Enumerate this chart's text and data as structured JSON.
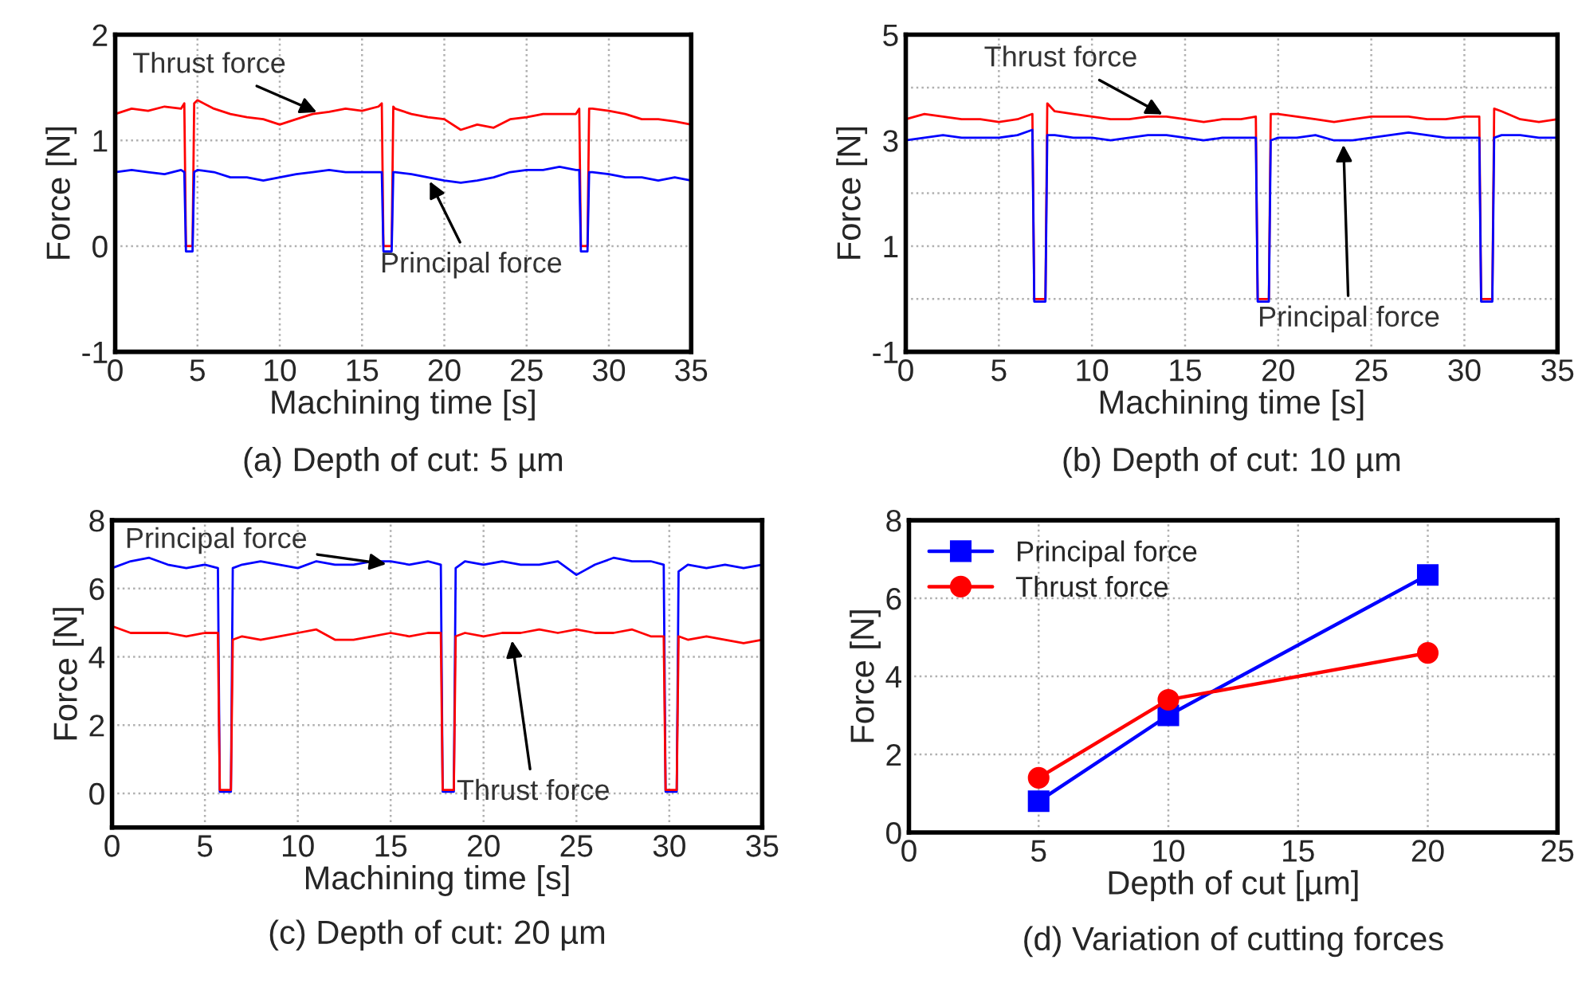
{
  "chart_data": [
    {
      "type": "line",
      "title": "(a) Depth of cut: 5 µm",
      "xlabel": "Machining time [s]",
      "ylabel": "Force [N]",
      "x": [
        0,
        1,
        2,
        3,
        4,
        4.2,
        4.3,
        4.7,
        4.8,
        5,
        6,
        7,
        8,
        9,
        10,
        11,
        12,
        13,
        14,
        15,
        16,
        16.2,
        16.3,
        16.8,
        16.9,
        17,
        18,
        19,
        20,
        21,
        22,
        23,
        24,
        25,
        26,
        27,
        28,
        28.2,
        28.3,
        28.7,
        28.8,
        29,
        30,
        31,
        32,
        33,
        34,
        35
      ],
      "series": [
        {
          "color": "#ff0000",
          "values": [
            1.25,
            1.3,
            1.28,
            1.32,
            1.3,
            1.35,
            0,
            0,
            1.35,
            1.38,
            1.3,
            1.25,
            1.22,
            1.2,
            1.15,
            1.2,
            1.25,
            1.27,
            1.3,
            1.28,
            1.32,
            1.35,
            0,
            0,
            1.32,
            1.3,
            1.25,
            1.22,
            1.2,
            1.1,
            1.15,
            1.12,
            1.2,
            1.22,
            1.25,
            1.25,
            1.25,
            1.3,
            0,
            0,
            1.3,
            1.3,
            1.28,
            1.25,
            1.2,
            1.2,
            1.18,
            1.15
          ]
        },
        {
          "color": "#0000ff",
          "values": [
            0.7,
            0.72,
            0.7,
            0.68,
            0.72,
            0.7,
            -0.05,
            -0.05,
            0.7,
            0.72,
            0.7,
            0.65,
            0.65,
            0.62,
            0.65,
            0.68,
            0.7,
            0.72,
            0.7,
            0.7,
            0.7,
            0.7,
            -0.05,
            -0.05,
            0.7,
            0.7,
            0.68,
            0.65,
            0.62,
            0.6,
            0.62,
            0.65,
            0.7,
            0.72,
            0.72,
            0.75,
            0.72,
            0.72,
            -0.05,
            -0.05,
            0.7,
            0.7,
            0.68,
            0.65,
            0.65,
            0.62,
            0.65,
            0.62
          ]
        }
      ],
      "annotations": [
        {
          "text": "Thrust force",
          "x": 12.5,
          "y": 1.25
        },
        {
          "text": "Principal force",
          "x": 19,
          "y": 0.65
        }
      ],
      "xlim": [
        0,
        35
      ],
      "xticks": [
        0,
        5,
        10,
        15,
        20,
        25,
        30,
        35
      ],
      "ylim": [
        -1,
        2
      ],
      "yticks": [
        -1,
        0,
        1,
        2
      ],
      "grid": true,
      "legend": false
    },
    {
      "type": "line",
      "title": "(b) Depth of cut: 10 µm",
      "xlabel": "Machining time [s]",
      "ylabel": "Force [N]",
      "x": [
        0,
        1,
        2,
        3,
        4,
        5,
        6,
        6.8,
        6.9,
        7.5,
        7.6,
        8,
        9,
        10,
        11,
        12,
        13,
        14,
        15,
        16,
        17,
        18,
        18.8,
        18.9,
        19.5,
        19.6,
        20,
        21,
        22,
        23,
        24,
        25,
        26,
        27,
        28,
        29,
        30,
        30.8,
        30.9,
        31.5,
        31.6,
        32,
        33,
        34,
        35
      ],
      "series": [
        {
          "color": "#ff0000",
          "values": [
            3.4,
            3.5,
            3.45,
            3.4,
            3.4,
            3.35,
            3.4,
            3.5,
            0,
            0,
            3.7,
            3.55,
            3.5,
            3.45,
            3.4,
            3.4,
            3.45,
            3.45,
            3.4,
            3.35,
            3.4,
            3.4,
            3.45,
            0,
            0,
            3.5,
            3.5,
            3.45,
            3.4,
            3.35,
            3.4,
            3.45,
            3.45,
            3.45,
            3.4,
            3.4,
            3.45,
            3.45,
            0,
            0,
            3.6,
            3.55,
            3.4,
            3.35,
            3.4
          ]
        },
        {
          "color": "#0000ff",
          "values": [
            3.0,
            3.05,
            3.1,
            3.05,
            3.05,
            3.05,
            3.1,
            3.2,
            -0.05,
            -0.05,
            3.1,
            3.1,
            3.05,
            3.05,
            3.0,
            3.05,
            3.1,
            3.1,
            3.05,
            3.0,
            3.05,
            3.05,
            3.05,
            -0.05,
            -0.05,
            3.0,
            3.05,
            3.05,
            3.1,
            3.0,
            3.0,
            3.05,
            3.1,
            3.15,
            3.1,
            3.05,
            3.05,
            3.05,
            -0.05,
            -0.05,
            3.05,
            3.1,
            3.1,
            3.05,
            3.05
          ]
        }
      ],
      "annotations": [
        {
          "text": "Thrust force",
          "x": 14,
          "y": 3.45
        },
        {
          "text": "Principal force",
          "x": 23.5,
          "y": 3.0
        }
      ],
      "xlim": [
        0,
        35
      ],
      "xticks": [
        0,
        5,
        10,
        15,
        20,
        25,
        30,
        35
      ],
      "ylim": [
        -1,
        5
      ],
      "yticks": [
        -1,
        {
          "value": 0,
          "label": null
        },
        1,
        {
          "value": 2,
          "label": null
        },
        3,
        {
          "value": 4,
          "label": null
        },
        5
      ],
      "grid": true,
      "legend": false
    },
    {
      "type": "line",
      "title": "(c) Depth of cut: 20 µm",
      "xlabel": "Machining time [s]",
      "ylabel": "Force [N]",
      "x": [
        0,
        1,
        2,
        3,
        4,
        5,
        5.7,
        5.8,
        6.4,
        6.5,
        7,
        8,
        9,
        10,
        11,
        12,
        13,
        14,
        15,
        16,
        17,
        17.7,
        17.8,
        18.4,
        18.5,
        19,
        20,
        21,
        22,
        23,
        24,
        25,
        26,
        27,
        28,
        29,
        29.7,
        29.8,
        30.4,
        30.5,
        31,
        32,
        33,
        34,
        35
      ],
      "series": [
        {
          "color": "#0000ff",
          "values": [
            6.6,
            6.8,
            6.9,
            6.7,
            6.6,
            6.7,
            6.6,
            0.05,
            0.05,
            6.6,
            6.7,
            6.8,
            6.7,
            6.6,
            6.8,
            6.7,
            6.7,
            6.8,
            6.8,
            6.7,
            6.8,
            6.7,
            0.05,
            0.05,
            6.6,
            6.8,
            6.7,
            6.8,
            6.7,
            6.7,
            6.8,
            6.4,
            6.7,
            6.9,
            6.8,
            6.8,
            6.7,
            0.05,
            0.05,
            6.5,
            6.7,
            6.6,
            6.7,
            6.6,
            6.7
          ]
        },
        {
          "color": "#ff0000",
          "values": [
            4.9,
            4.7,
            4.7,
            4.7,
            4.6,
            4.7,
            4.7,
            0.1,
            0.1,
            4.5,
            4.6,
            4.5,
            4.6,
            4.7,
            4.8,
            4.5,
            4.5,
            4.6,
            4.7,
            4.6,
            4.7,
            4.7,
            0.1,
            0.1,
            4.6,
            4.7,
            4.6,
            4.7,
            4.7,
            4.8,
            4.7,
            4.8,
            4.7,
            4.7,
            4.8,
            4.6,
            4.6,
            0.1,
            0.1,
            4.6,
            4.5,
            4.6,
            4.5,
            4.4,
            4.5
          ]
        }
      ],
      "annotations": [
        {
          "text": "Principal force",
          "x": 15,
          "y": 6.7
        },
        {
          "text": "Thrust force",
          "x": 21.5,
          "y": 4.6
        }
      ],
      "xlim": [
        0,
        35
      ],
      "xticks": [
        0,
        5,
        10,
        15,
        20,
        25,
        30,
        35
      ],
      "ylim": [
        -1,
        8
      ],
      "yticks": [
        0,
        2,
        4,
        6,
        8
      ],
      "grid": true,
      "legend": false
    },
    {
      "type": "line",
      "title": "(d) Variation of cutting forces",
      "xlabel": "Depth of cut [µm]",
      "ylabel": "Force [N]",
      "x": [
        5,
        10,
        20
      ],
      "series": [
        {
          "name": "Principal force",
          "color": "#0000ff",
          "marker": "square",
          "values": [
            0.8,
            3.0,
            6.6
          ]
        },
        {
          "name": "Thrust force",
          "color": "#ff0000",
          "marker": "circle",
          "values": [
            1.4,
            3.4,
            4.6
          ]
        }
      ],
      "xlim": [
        0,
        25
      ],
      "xticks": [
        0,
        5,
        10,
        15,
        20,
        25
      ],
      "ylim": [
        0,
        8
      ],
      "yticks": [
        0,
        2,
        4,
        6,
        8
      ],
      "grid": true,
      "legend": "top left"
    }
  ]
}
